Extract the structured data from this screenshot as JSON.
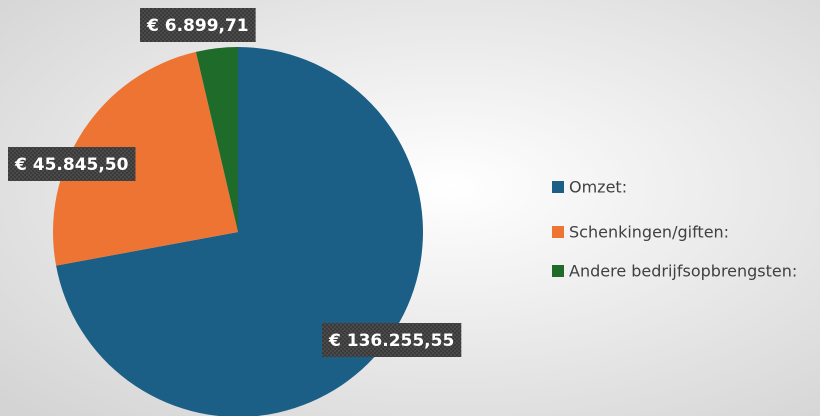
{
  "chart_data": {
    "type": "pie",
    "categories": [
      "Omzet:",
      "Schenkingen/giften:",
      "Andere bedrijfsopbrengsten:"
    ],
    "values": [
      136255.55,
      45845.5,
      6899.71
    ],
    "value_labels": [
      "€ 136.255,55",
      "€ 45.845,50",
      "€ 6.899,71"
    ],
    "colors": [
      "#1c5f86",
      "#ed7432",
      "#1e6b2a"
    ],
    "legend": "right"
  }
}
